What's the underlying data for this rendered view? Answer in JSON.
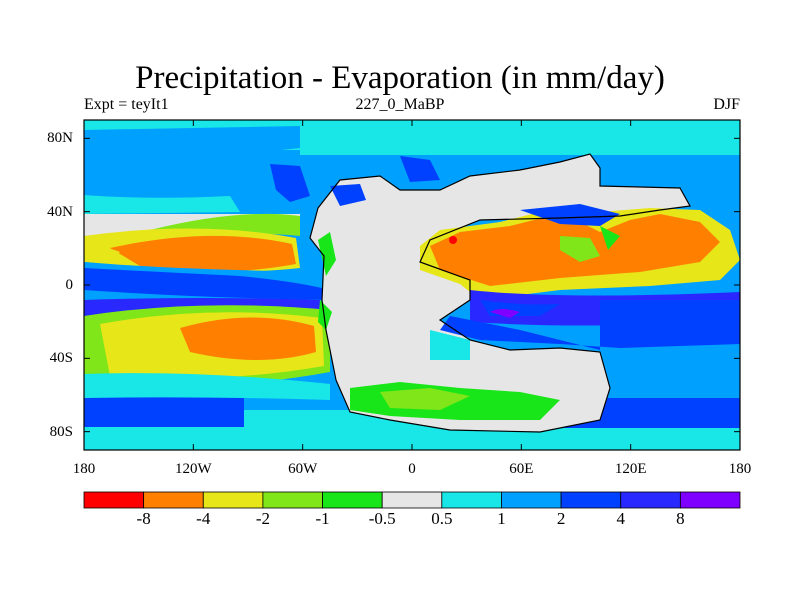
{
  "title": "Precipitation - Evaporation (in mm/day)",
  "left_subtitle": "Expt = teyIt1",
  "center_subtitle": "227_0_MaBP",
  "right_subtitle": "DJF",
  "lat_labels": [
    "80N",
    "40N",
    "0",
    "40S",
    "80S"
  ],
  "lon_labels": [
    "180",
    "120W",
    "60W",
    "0",
    "60E",
    "120E",
    "180"
  ],
  "colorbar": {
    "labels": [
      "-8",
      "-4",
      "-2",
      "-1",
      "-0.5",
      "0.5",
      "1",
      "2",
      "4",
      "8"
    ],
    "colors": [
      "#ff0000",
      "#ff8000",
      "#e6e619",
      "#80e619",
      "#19e619",
      "#e6e6e6",
      "#19e6e6",
      "#00a0ff",
      "#0040ff",
      "#2828ff",
      "#8000ff"
    ]
  }
}
